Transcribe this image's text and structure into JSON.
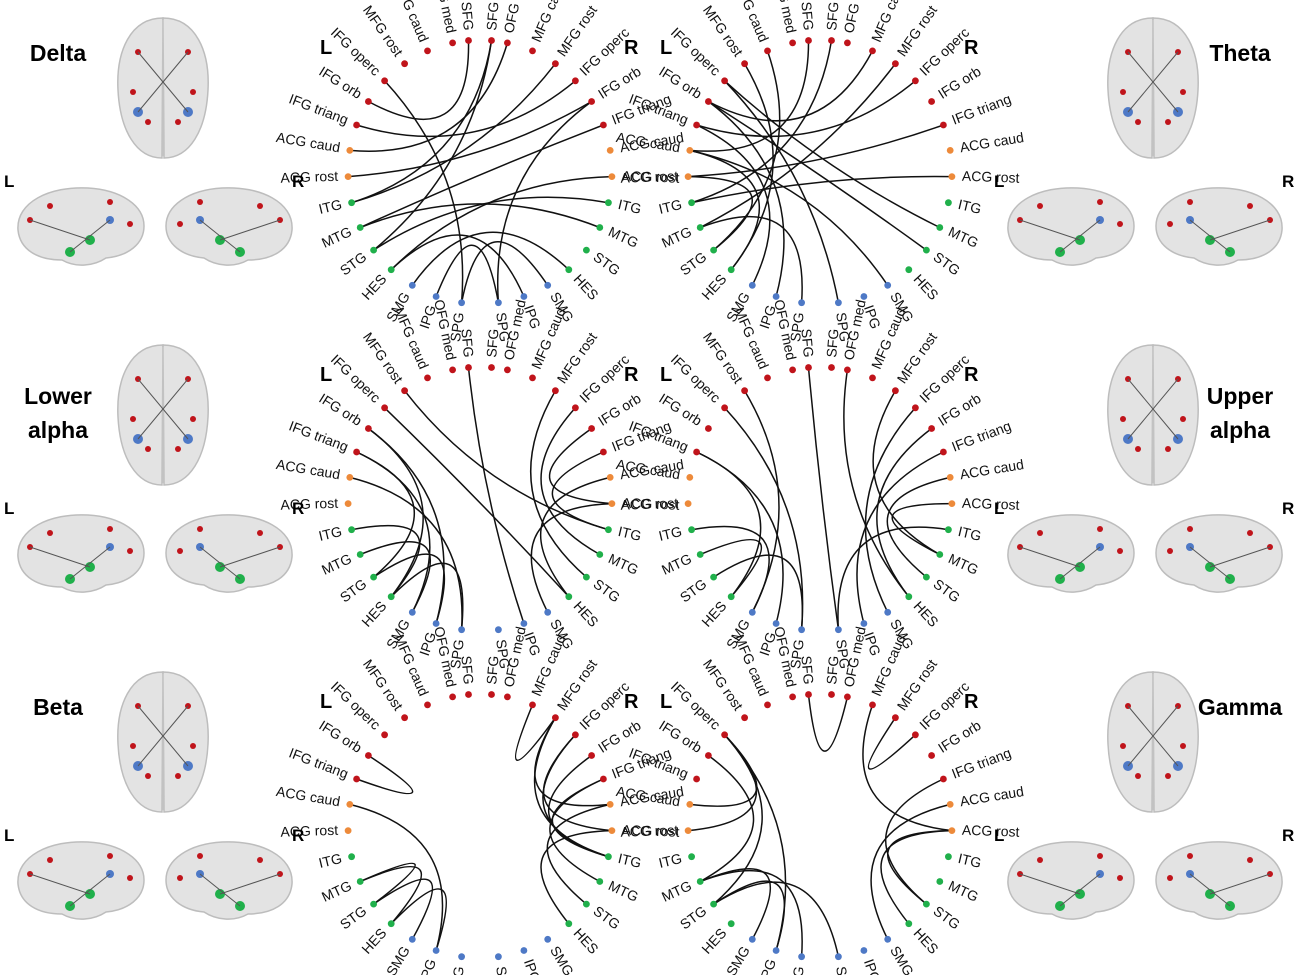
{
  "side_letters": {
    "left": "L",
    "right": "R"
  },
  "colors": {
    "frontal": "#c0141b",
    "cingulate": "#ed8a3a",
    "temporal": "#20b04b",
    "parietal": "#4e79c6",
    "link": "#111111",
    "brain_fill": "#e3e3e3",
    "brain_stroke": "#bdbdbd"
  },
  "node_labels": {
    "left": [
      "OFG med",
      "MFG caud",
      "MFG rost",
      "IFG operc",
      "IFG orb",
      "IFG triang",
      "ACG caud",
      "ACG rost",
      "ITG",
      "MTG",
      "STG",
      "HES",
      "SMG",
      "IPG",
      "SPG"
    ],
    "right": [
      "SPG",
      "IPG",
      "SMG",
      "HES",
      "STG",
      "MTG",
      "ITG",
      "ACG rost",
      "ACG caud",
      "IFG triang",
      "IFG orb",
      "IFG operc",
      "MFG rost",
      "MFG caud",
      "OFG med"
    ],
    "top": [
      "SFG",
      "SFG"
    ]
  },
  "node_groups": {
    "left": [
      "frontal",
      "frontal",
      "frontal",
      "frontal",
      "frontal",
      "frontal",
      "cingulate",
      "cingulate",
      "temporal",
      "temporal",
      "temporal",
      "temporal",
      "parietal",
      "parietal",
      "parietal"
    ],
    "right": [
      "parietal",
      "parietal",
      "parietal",
      "temporal",
      "temporal",
      "temporal",
      "temporal",
      "cingulate",
      "cingulate",
      "frontal",
      "frontal",
      "frontal",
      "frontal",
      "frontal",
      "frontal"
    ],
    "top": [
      "frontal",
      "frontal"
    ]
  },
  "bands": [
    {
      "label_lines": [
        "Delta"
      ],
      "side": "left",
      "diagrams": [
        {
          "links": [
            [
              3,
              14
            ],
            [
              4,
              30
            ],
            [
              5,
              26
            ],
            [
              6,
              29
            ],
            [
              7,
              25
            ],
            [
              8,
              27
            ],
            [
              8,
              31
            ],
            [
              9,
              24
            ],
            [
              10,
              21
            ],
            [
              9,
              20
            ],
            [
              11,
              22
            ],
            [
              11,
              16
            ],
            [
              12,
              18
            ],
            [
              13,
              15
            ],
            [
              14,
              17
            ],
            [
              15,
              25
            ],
            [
              10,
              31
            ]
          ]
        },
        {
          "links": [
            [
              3,
              20
            ],
            [
              3,
              15
            ],
            [
              4,
              28
            ],
            [
              4,
              13
            ],
            [
              5,
              26
            ],
            [
              5,
              12
            ],
            [
              6,
              30
            ],
            [
              6,
              11
            ],
            [
              7,
              24
            ],
            [
              7,
              10
            ],
            [
              8,
              31
            ],
            [
              8,
              22
            ],
            [
              9,
              27
            ],
            [
              9,
              14
            ],
            [
              2,
              11
            ],
            [
              1,
              10
            ],
            [
              4,
              19
            ],
            [
              6,
              17
            ]
          ]
        }
      ]
    },
    {
      "label_lines": [
        "Theta"
      ],
      "side": "right",
      "diagrams": [
        {
          "links": []
        },
        {
          "links": []
        }
      ]
    },
    {
      "label_lines": [
        "Lower",
        "alpha"
      ],
      "side": "left",
      "diagrams": [
        {
          "links": [
            [
              4,
              11
            ],
            [
              4,
              13
            ],
            [
              5,
              10
            ],
            [
              5,
              12
            ],
            [
              6,
              14
            ],
            [
              3,
              18
            ],
            [
              2,
              21
            ],
            [
              8,
              11
            ],
            [
              9,
              12
            ],
            [
              10,
              13
            ],
            [
              11,
              14
            ],
            [
              20,
              26
            ],
            [
              19,
              27
            ],
            [
              21,
              24
            ],
            [
              22,
              25
            ],
            [
              18,
              23
            ],
            [
              17,
              22
            ],
            [
              30,
              16
            ]
          ]
        },
        {
          "links": [
            [
              5,
              11
            ],
            [
              5,
              13
            ],
            [
              3,
              14
            ],
            [
              2,
              12
            ],
            [
              8,
              12
            ],
            [
              9,
              11
            ],
            [
              10,
              14
            ],
            [
              26,
              17
            ],
            [
              25,
              18
            ],
            [
              24,
              16
            ],
            [
              23,
              19
            ],
            [
              22,
              20
            ],
            [
              21,
              15
            ],
            [
              29,
              18
            ],
            [
              27,
              20
            ],
            [
              30,
              15
            ]
          ]
        }
      ]
    },
    {
      "label_lines": [
        "Upper",
        "alpha"
      ],
      "side": "right",
      "diagrams": [
        {
          "links": []
        },
        {
          "links": []
        }
      ]
    },
    {
      "label_lines": [
        "Beta"
      ],
      "side": "left",
      "diagrams": [
        {
          "links": [
            [
              4,
              5
            ],
            [
              6,
              13
            ],
            [
              9,
              11
            ],
            [
              10,
              12
            ],
            [
              11,
              13
            ],
            [
              9,
              10
            ],
            [
              21,
              25
            ],
            [
              21,
              26
            ],
            [
              21,
              27
            ],
            [
              21,
              24
            ],
            [
              22,
              26
            ],
            [
              23,
              27
            ],
            [
              20,
              24
            ],
            [
              19,
              23
            ],
            [
              18,
              22
            ],
            [
              27,
              28
            ]
          ]
        },
        {
          "links": [
            [
              3,
              6
            ],
            [
              3,
              7
            ],
            [
              3,
              10
            ],
            [
              3,
              13
            ],
            [
              4,
              9
            ],
            [
              9,
              12
            ],
            [
              9,
              14
            ],
            [
              10,
              13
            ],
            [
              10,
              15
            ],
            [
              22,
              28
            ],
            [
              22,
              19
            ],
            [
              22,
              18
            ],
            [
              23,
              17
            ],
            [
              24,
              19
            ],
            [
              26,
              27
            ],
            [
              30,
              29
            ]
          ]
        }
      ]
    },
    {
      "label_lines": [
        "Gamma"
      ],
      "side": "right",
      "diagrams": [
        {
          "links": []
        },
        {
          "links": []
        }
      ]
    }
  ]
}
